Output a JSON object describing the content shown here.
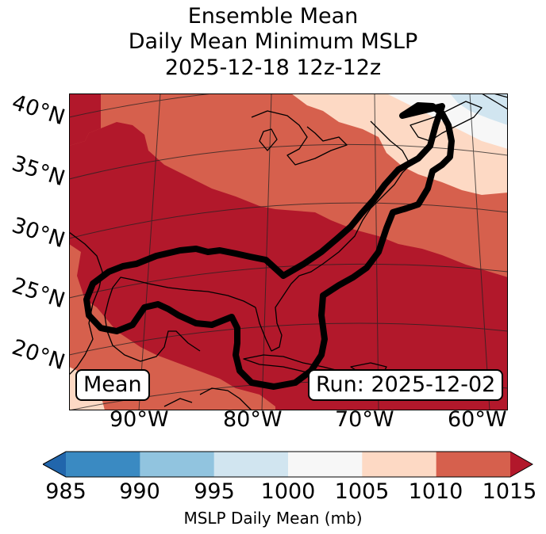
{
  "title": {
    "line1": "Ensemble Mean",
    "line2": "Daily Mean Minimum MSLP",
    "line3": "2025-12-18 12z-12z"
  },
  "map": {
    "lat_labels": [
      "40°N",
      "35°N",
      "30°N",
      "25°N",
      "20°N"
    ],
    "lon_labels": [
      "90°W",
      "80°W",
      "70°W",
      "60°W"
    ],
    "mean_label": "Mean",
    "run_label": "Run: 2025-12-02",
    "contour_color": "#000000"
  },
  "colorbar": {
    "ticks": [
      "985",
      "990",
      "995",
      "1000",
      "1005",
      "1010",
      "1015"
    ],
    "colors": [
      "#3a8ac2",
      "#91c4df",
      "#d1e5f0",
      "#f7f7f7",
      "#fdd9c4",
      "#d6604d",
      "#b2182b"
    ],
    "under_color": "#2166ac",
    "over_color": "#b2182b",
    "label": "MSLP Daily Mean (mb)"
  }
}
